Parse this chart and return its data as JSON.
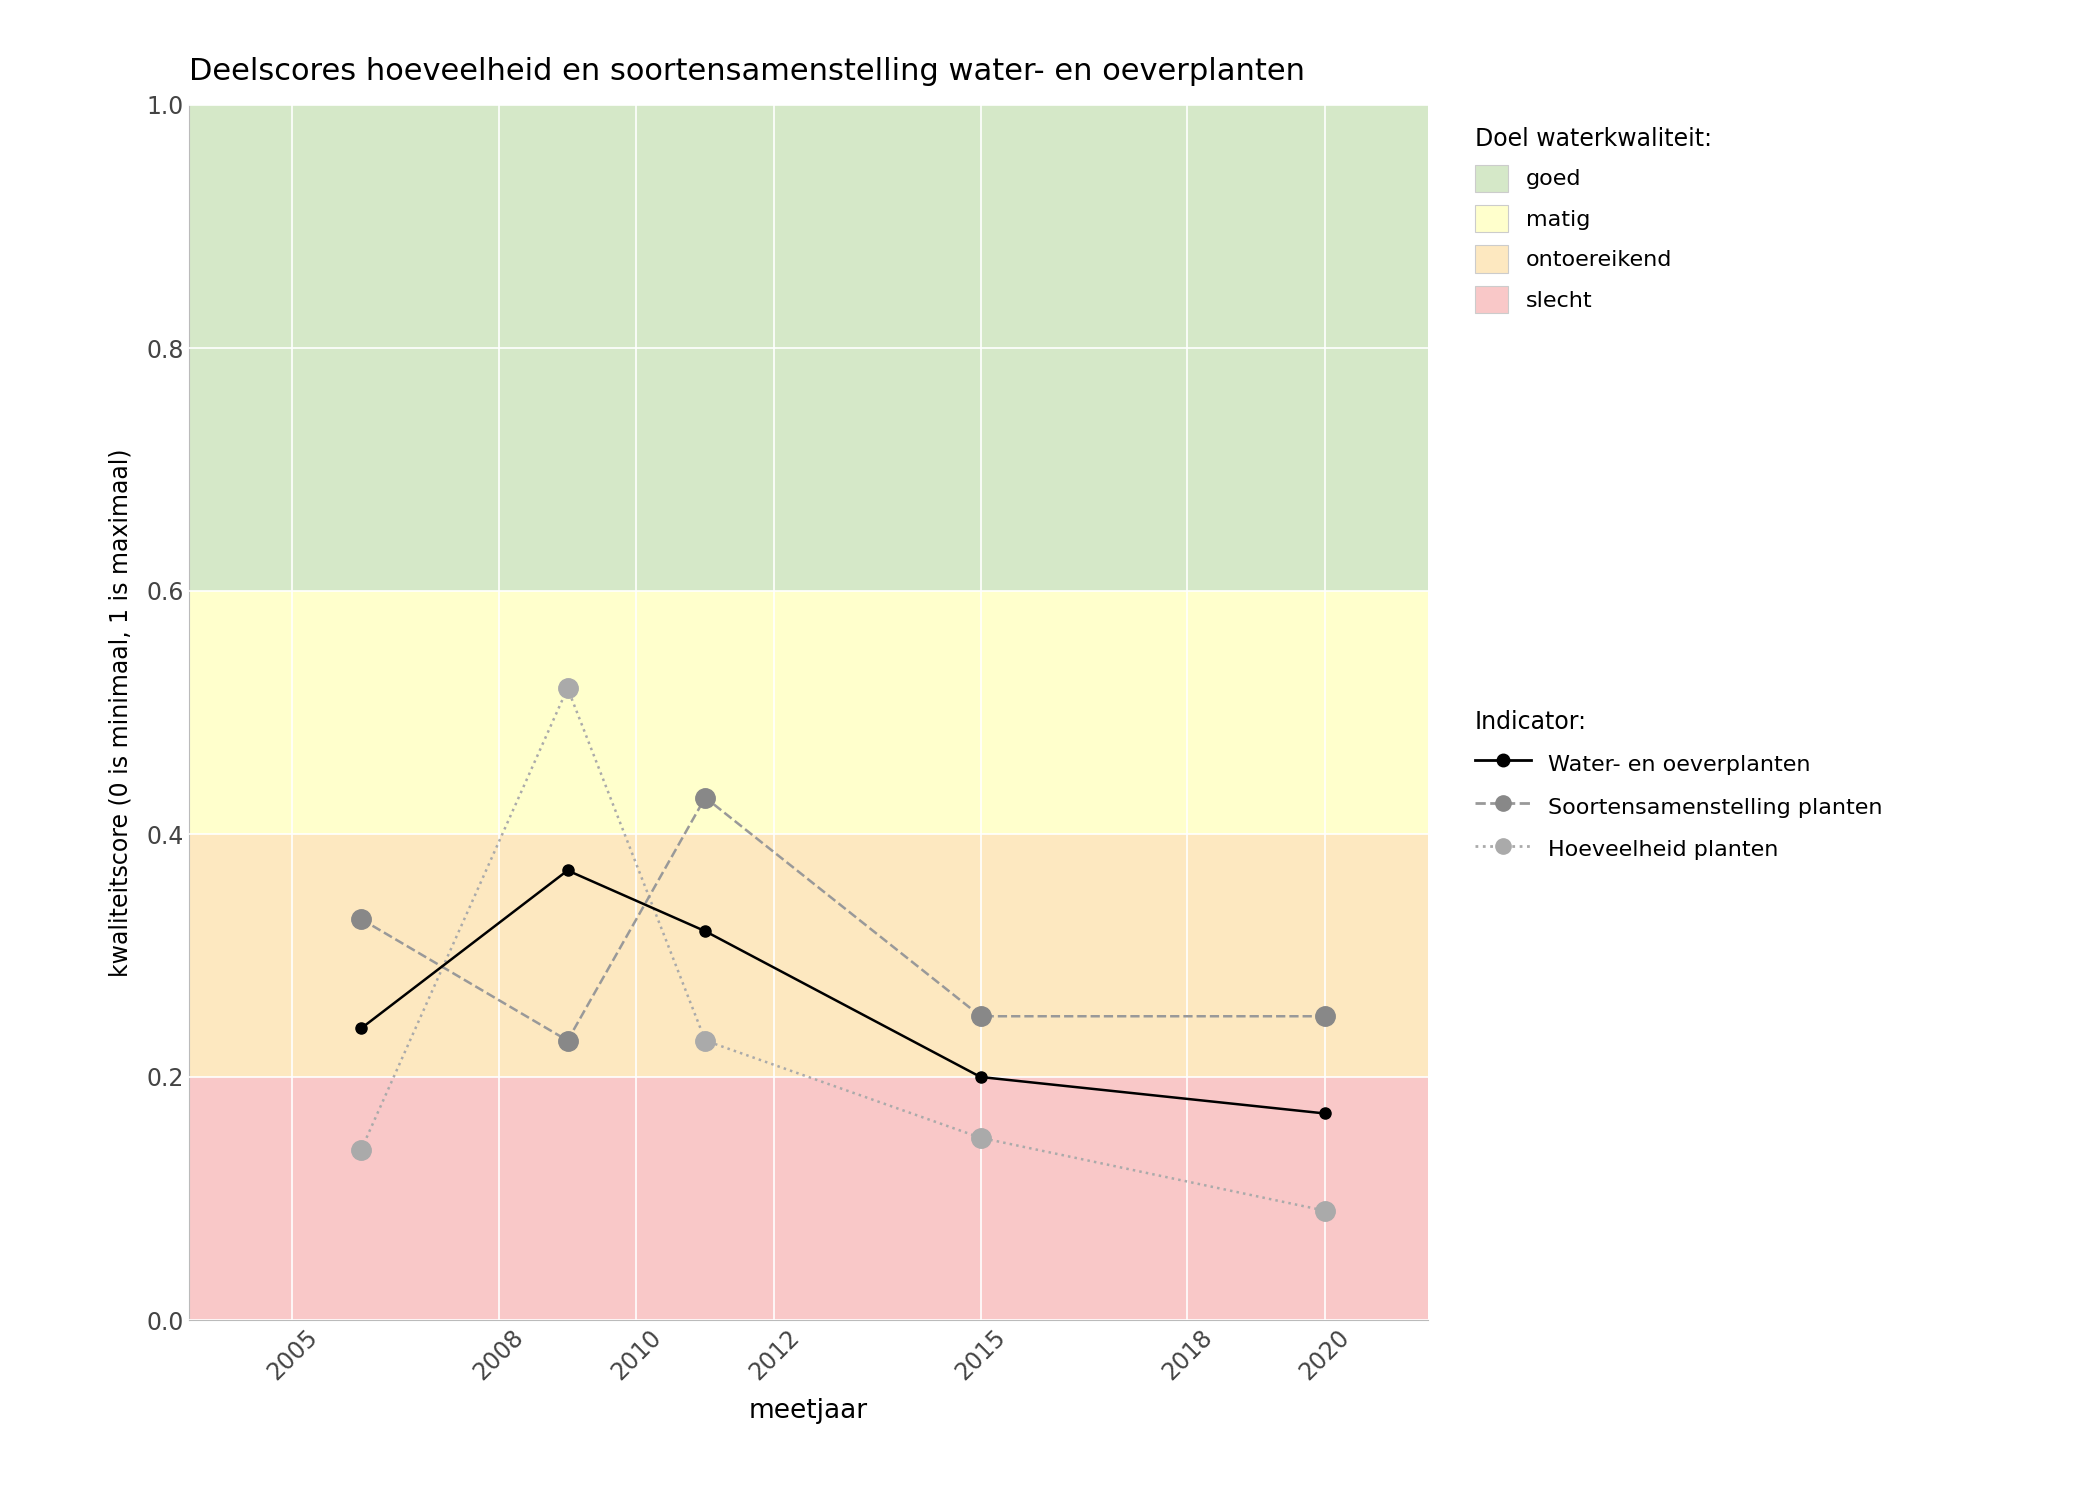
{
  "title": "Deelscores hoeveelheid en soortensamenstelling water- en oeverplanten",
  "xlabel": "meetjaar",
  "ylabel": "kwaliteitscore (0 is minimaal, 1 is maximaal)",
  "xlim": [
    2003.5,
    2021.5
  ],
  "ylim": [
    0.0,
    1.0
  ],
  "xticks": [
    2005,
    2008,
    2010,
    2012,
    2015,
    2018,
    2020
  ],
  "yticks": [
    0.0,
    0.2,
    0.4,
    0.6,
    0.8,
    1.0
  ],
  "background_color": "#ffffff",
  "quality_bands": [
    {
      "name": "goed",
      "ymin": 0.6,
      "ymax": 1.0,
      "color": "#d5e8c8"
    },
    {
      "name": "matig",
      "ymin": 0.4,
      "ymax": 0.6,
      "color": "#ffffcc"
    },
    {
      "name": "ontoereikend",
      "ymin": 0.2,
      "ymax": 0.4,
      "color": "#fde8c0"
    },
    {
      "name": "slecht",
      "ymin": 0.0,
      "ymax": 0.2,
      "color": "#f9c8c8"
    }
  ],
  "series": {
    "water_oeverplanten": {
      "label": "Water- en oeverplanten",
      "years": [
        2006,
        2009,
        2011,
        2015,
        2020
      ],
      "values": [
        0.24,
        0.37,
        0.32,
        0.2,
        0.17
      ],
      "color": "#000000",
      "linestyle": "solid",
      "linewidth": 1.8,
      "markersize": 8,
      "marker": "o",
      "markerfacecolor": "#000000",
      "markeredgecolor": "#000000",
      "zorder": 5
    },
    "soortensamenstelling": {
      "label": "Soortensamenstelling planten",
      "years": [
        2006,
        2009,
        2011,
        2015,
        2020
      ],
      "values": [
        0.33,
        0.23,
        0.43,
        0.25,
        0.25
      ],
      "color": "#999999",
      "linestyle": "dashed",
      "linewidth": 1.8,
      "markersize": 14,
      "marker": "o",
      "markerfacecolor": "#888888",
      "markeredgecolor": "#888888",
      "zorder": 4
    },
    "hoeveelheid": {
      "label": "Hoeveelheid planten",
      "years": [
        2006,
        2009,
        2011,
        2015,
        2020
      ],
      "values": [
        0.14,
        0.52,
        0.23,
        0.15,
        0.09
      ],
      "color": "#aaaaaa",
      "linestyle": "dotted",
      "linewidth": 1.8,
      "markersize": 14,
      "marker": "o",
      "markerfacecolor": "#aaaaaa",
      "markeredgecolor": "#aaaaaa",
      "zorder": 4
    }
  },
  "legend_quality_title": "Doel waterkwaliteit:",
  "legend_quality_labels": [
    "goed",
    "matig",
    "ontoereikend",
    "slecht"
  ],
  "legend_quality_colors": [
    "#d5e8c8",
    "#ffffcc",
    "#fde8c0",
    "#f9c8c8"
  ],
  "legend_indicator_title": "Indicator:"
}
